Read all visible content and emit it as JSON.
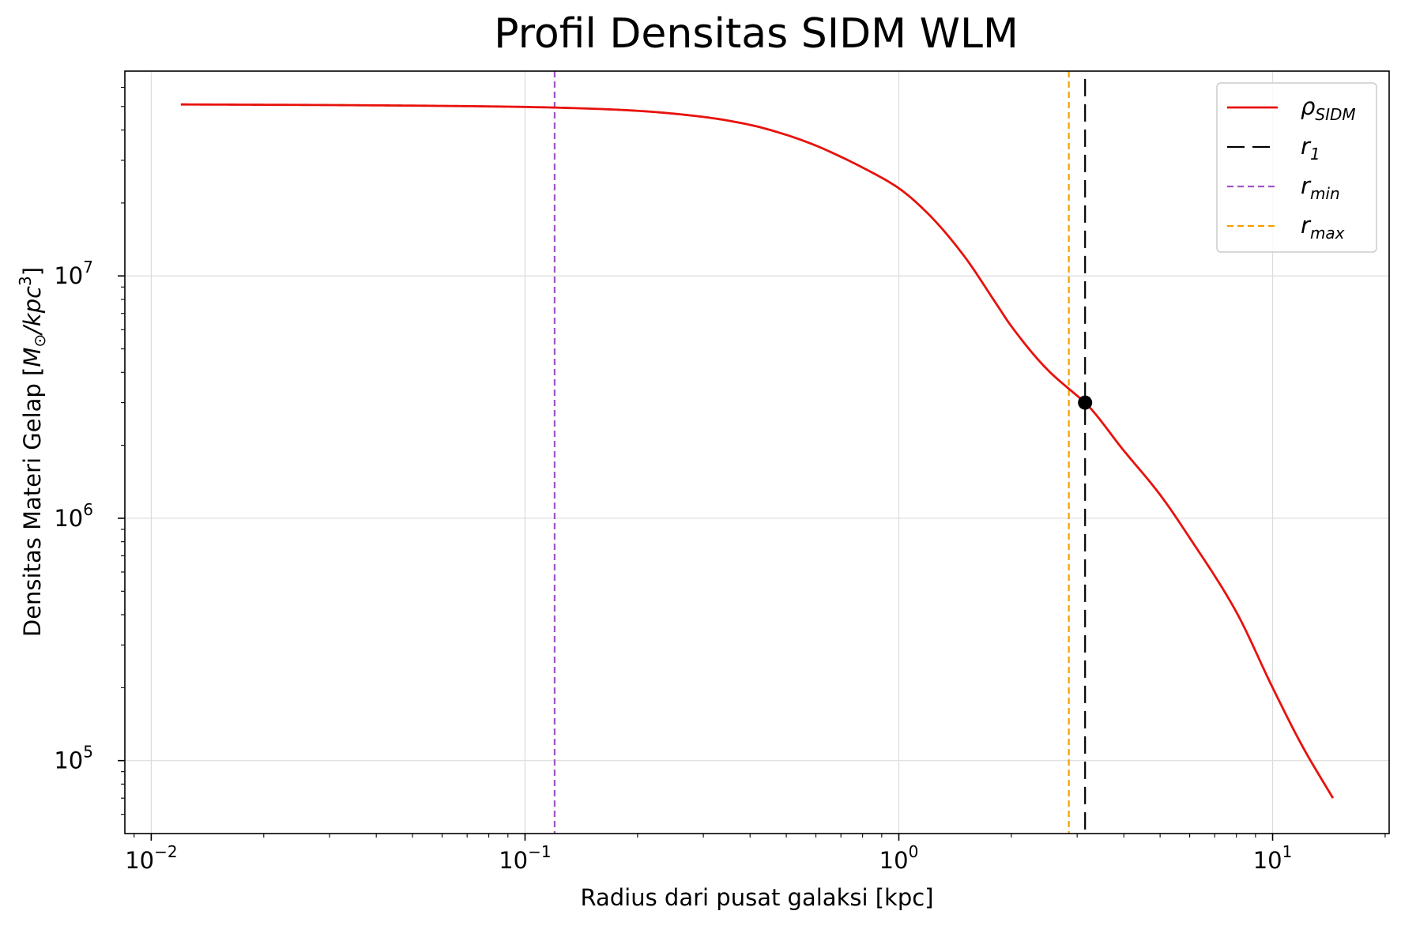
{
  "chart_data": {
    "type": "line",
    "title": "Profil Densitas SIDM WLM",
    "xlabel": "Radius dari pusat galaksi [kpc]",
    "ylabel_main": "Densitas Materi Gelap [",
    "ylabel_math": "M",
    "ylabel_sub": "⊙",
    "ylabel_mid": "/kpc",
    "ylabel_sup": "3",
    "ylabel_end": "]",
    "xscale": "log",
    "yscale": "log",
    "xlim": [
      0.0085,
      20.5
    ],
    "ylim": [
      50000,
      70000000
    ],
    "grid": true,
    "legend_position": "upper right",
    "x_major_ticks": [
      {
        "value": 0.01,
        "base": "10",
        "exp": "−2"
      },
      {
        "value": 0.1,
        "base": "10",
        "exp": "−1"
      },
      {
        "value": 1,
        "base": "10",
        "exp": "0"
      },
      {
        "value": 10,
        "base": "10",
        "exp": "1"
      }
    ],
    "y_major_ticks": [
      {
        "value": 100000,
        "base": "10",
        "exp": "5"
      },
      {
        "value": 1000000,
        "base": "10",
        "exp": "6"
      },
      {
        "value": 10000000,
        "base": "10",
        "exp": "7"
      }
    ],
    "series": [
      {
        "name": "ρ",
        "name_sub": "SIDM",
        "color": "#e8120c",
        "style": "solid",
        "x": [
          0.012,
          0.03,
          0.06,
          0.1,
          0.15,
          0.2,
          0.3,
          0.4,
          0.5,
          0.6,
          0.7,
          0.8,
          1.0,
          1.2,
          1.5,
          1.8,
          2.0,
          2.5,
          3.0,
          3.15,
          4.0,
          5.0,
          6.0,
          8.0,
          10.0,
          12.0,
          14.5
        ],
        "y": [
          51000000,
          50700000,
          50300000,
          49800000,
          49000000,
          48000000,
          45300000,
          42000000,
          38200000,
          34500000,
          31000000,
          28000000,
          23000000,
          18000000,
          12000000,
          7900000,
          6200000,
          4100000,
          3200000,
          3000000,
          1900000,
          1250000,
          830000,
          410000,
          200000,
          115000,
          70000
        ]
      }
    ],
    "vlines": [
      {
        "name": "r",
        "name_sub": "1",
        "x": 3.15,
        "color": "#000000",
        "dash": "22,10",
        "y_top": 65000000
      },
      {
        "name": "r",
        "name_sub": "min",
        "x": 0.12,
        "color": "#a055c8",
        "dash": "8,5"
      },
      {
        "name": "r",
        "name_sub": "max",
        "x": 2.85,
        "color": "#f5a000",
        "dash": "8,5"
      }
    ],
    "points": [
      {
        "x": 3.15,
        "y": 3000000,
        "color": "#000000"
      }
    ]
  }
}
